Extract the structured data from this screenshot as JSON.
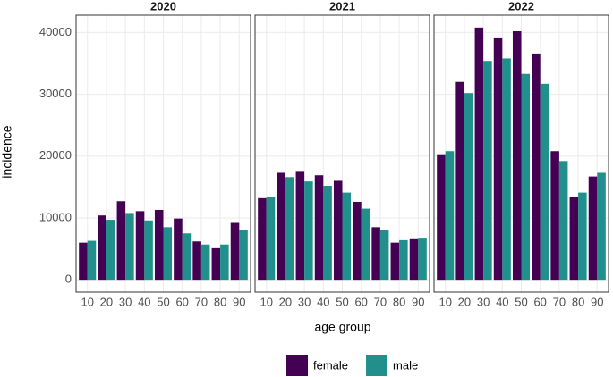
{
  "chart_data": {
    "type": "bar",
    "x_label": "age group",
    "y_label": "incidence",
    "categories": [
      "10",
      "20",
      "30",
      "40",
      "50",
      "60",
      "70",
      "80",
      "90"
    ],
    "ylim": [
      -2000,
      42800
    ],
    "yticks": [
      0,
      10000,
      20000,
      30000,
      40000
    ],
    "grid": true,
    "series": [
      {
        "name": "female",
        "color": "#440154"
      },
      {
        "name": "male",
        "color": "#21908C"
      }
    ],
    "facets": [
      {
        "title": "2020",
        "series": [
          {
            "values": [
              6000,
              10400,
              12700,
              11100,
              11300,
              9900,
              6200,
              5100,
              9200
            ]
          },
          {
            "values": [
              6300,
              9700,
              10800,
              9600,
              8500,
              7500,
              5700,
              5700,
              8100
            ]
          }
        ]
      },
      {
        "title": "2021",
        "series": [
          {
            "values": [
              13200,
              17300,
              17600,
              16900,
              16000,
              12600,
              8500,
              6000,
              6700
            ]
          },
          {
            "values": [
              13400,
              16600,
              15900,
              15200,
              14100,
              11500,
              8000,
              6400,
              6800
            ]
          }
        ]
      },
      {
        "title": "2022",
        "series": [
          {
            "values": [
              20300,
              32000,
              40800,
              39200,
              40200,
              36600,
              20800,
              13400,
              16700
            ]
          },
          {
            "values": [
              20800,
              30200,
              35400,
              35800,
              33300,
              31700,
              19200,
              14100,
              17300
            ]
          }
        ]
      }
    ]
  }
}
